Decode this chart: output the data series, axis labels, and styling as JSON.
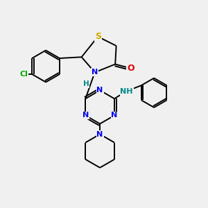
{
  "bg_color": "#f0f0f0",
  "atom_colors": {
    "S": "#ccaa00",
    "N": "#0000ee",
    "O": "#dd0000",
    "Cl": "#00aa00",
    "C": "#000000",
    "H": "#008888"
  },
  "bond_color": "#000000",
  "bond_width": 1.4,
  "fig_size": [
    3.0,
    3.0
  ],
  "dpi": 100
}
